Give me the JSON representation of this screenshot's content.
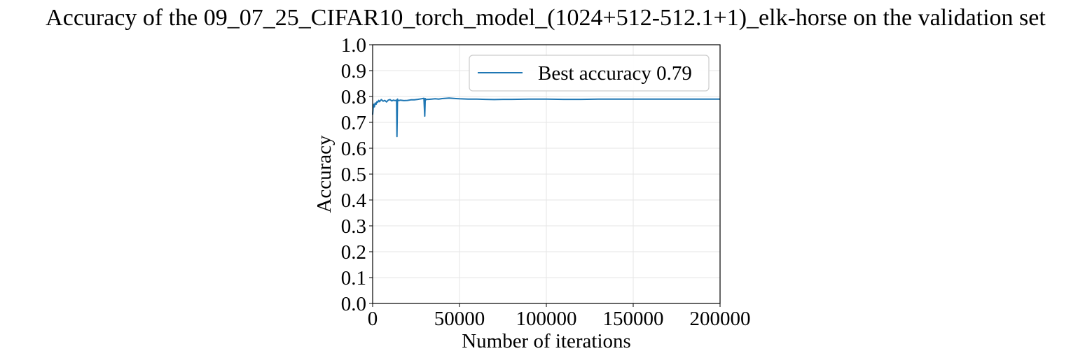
{
  "chart_data": {
    "type": "line",
    "title": "Accuracy of the 09_07_25_CIFAR10_torch_model_(1024+512-512.1+1)_elk-horse on the validation set",
    "xlabel": "Number of iterations",
    "ylabel": "Accuracy",
    "xlim": [
      0,
      200000
    ],
    "ylim": [
      0.0,
      1.0
    ],
    "xticks": [
      0,
      50000,
      100000,
      150000,
      200000
    ],
    "xtick_labels": [
      "0",
      "50000",
      "100000",
      "150000",
      "200000"
    ],
    "yticks": [
      0.0,
      0.1,
      0.2,
      0.3,
      0.4,
      0.5,
      0.6,
      0.7,
      0.8,
      0.9,
      1.0
    ],
    "ytick_labels": [
      "0.0",
      "0.1",
      "0.2",
      "0.3",
      "0.4",
      "0.5",
      "0.6",
      "0.7",
      "0.8",
      "0.9",
      "1.0"
    ],
    "grid": true,
    "legend_position": "top-right",
    "series": [
      {
        "name": "Best accuracy 0.79",
        "color": "#1f77b4",
        "x": [
          0,
          300,
          700,
          1000,
          1500,
          2000,
          2500,
          3000,
          3500,
          4000,
          5000,
          6000,
          7000,
          8000,
          9000,
          10000,
          11000,
          12000,
          13000,
          13800,
          14000,
          14300,
          14600,
          15000,
          16000,
          18000,
          20000,
          22000,
          24000,
          26000,
          28000,
          29500,
          30000,
          30300,
          30600,
          31000,
          32000,
          34000,
          36000,
          38000,
          40000,
          42000,
          44000,
          46000,
          48000,
          50000,
          55000,
          60000,
          65000,
          70000,
          75000,
          80000,
          90000,
          100000,
          110000,
          120000,
          130000,
          140000,
          150000,
          160000,
          170000,
          180000,
          190000,
          200000
        ],
        "y": [
          0.73,
          0.755,
          0.77,
          0.76,
          0.775,
          0.77,
          0.78,
          0.778,
          0.785,
          0.78,
          0.788,
          0.782,
          0.785,
          0.779,
          0.786,
          0.788,
          0.783,
          0.786,
          0.784,
          0.786,
          0.645,
          0.79,
          0.785,
          0.784,
          0.786,
          0.784,
          0.785,
          0.787,
          0.787,
          0.789,
          0.791,
          0.793,
          0.724,
          0.792,
          0.787,
          0.789,
          0.789,
          0.79,
          0.791,
          0.79,
          0.792,
          0.793,
          0.794,
          0.793,
          0.792,
          0.791,
          0.79,
          0.79,
          0.789,
          0.788,
          0.789,
          0.789,
          0.79,
          0.79,
          0.789,
          0.789,
          0.79,
          0.79,
          0.79,
          0.79,
          0.79,
          0.79,
          0.79,
          0.79
        ]
      }
    ]
  }
}
